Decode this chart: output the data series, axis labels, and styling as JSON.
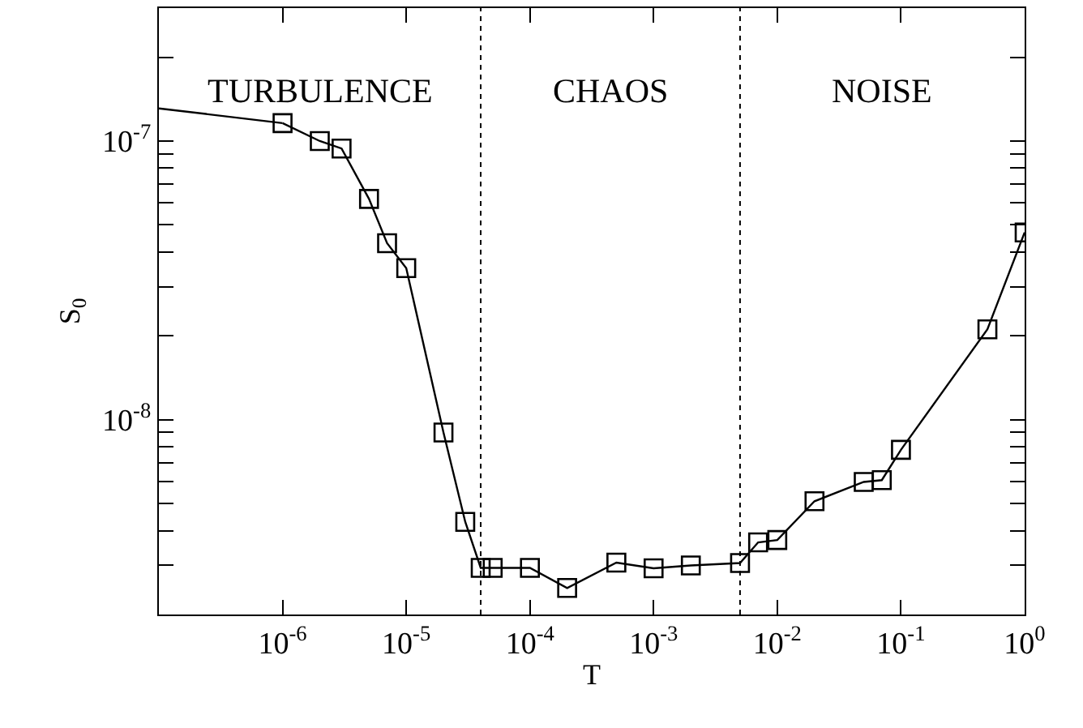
{
  "chart_data": {
    "type": "line",
    "xlabel": "T",
    "ylabel": "S$_{0}$",
    "log": "xy",
    "marker": "square",
    "line_style": "solid",
    "xlim": [
      1e-07,
      1
    ],
    "ylim": [
      2e-09,
      3e-07
    ],
    "xticks": [
      {
        "value": 1e-06,
        "label": "10$^{-6}$"
      },
      {
        "value": 1e-05,
        "label": "10$^{-5}$"
      },
      {
        "value": 0.0001,
        "label": "10$^{-4}$"
      },
      {
        "value": 0.001,
        "label": "10$^{-3}$"
      },
      {
        "value": 0.01,
        "label": "10$^{-2}$"
      },
      {
        "value": 0.1,
        "label": "10$^{-1}$"
      },
      {
        "value": 1,
        "label": "10$^{0}$"
      }
    ],
    "yticks": [
      {
        "value": 3e-09,
        "label": null
      },
      {
        "value": 4e-09,
        "label": null
      },
      {
        "value": 5e-09,
        "label": null
      },
      {
        "value": 6e-09,
        "label": null
      },
      {
        "value": 7e-09,
        "label": null
      },
      {
        "value": 8e-09,
        "label": null
      },
      {
        "value": 9e-09,
        "label": null
      },
      {
        "value": 1e-08,
        "label": "10$^{-8}$"
      },
      {
        "value": 2e-08,
        "label": null
      },
      {
        "value": 3e-08,
        "label": null
      },
      {
        "value": 4e-08,
        "label": null
      },
      {
        "value": 5e-08,
        "label": null
      },
      {
        "value": 6e-08,
        "label": null
      },
      {
        "value": 7e-08,
        "label": null
      },
      {
        "value": 8e-08,
        "label": null
      },
      {
        "value": 9e-08,
        "label": null
      },
      {
        "value": 1e-07,
        "label": "10$^{-7}$"
      },
      {
        "value": 2e-07,
        "label": null
      }
    ],
    "series": [
      {
        "color": "#000000",
        "x": [
          1e-06,
          2e-06,
          3e-06,
          5e-06,
          7e-06,
          1e-05,
          2e-05,
          3e-05,
          4e-05,
          5e-05,
          0.0001,
          0.0002,
          0.0005,
          0.001,
          0.002,
          0.005,
          0.007,
          0.01,
          0.02,
          0.05,
          0.07,
          0.1,
          0.5,
          1
        ],
        "values": [
          1.16e-07,
          1e-07,
          9.4e-08,
          6.2e-08,
          4.3e-08,
          3.5e-08,
          9e-09,
          4.3e-09,
          2.94e-09,
          2.94e-09,
          2.94e-09,
          2.49e-09,
          3.07e-09,
          2.93e-09,
          3e-09,
          3.06e-09,
          3.63e-09,
          3.7e-09,
          5.1e-09,
          5.98e-09,
          6.07e-09,
          7.8e-09,
          2.11e-08,
          4.7e-08
        ]
      },
      {
        "color": "#000000",
        "marker": "none",
        "x": [
          1e-07,
          1e-06
        ],
        "values": [
          1.31e-07,
          1.16e-07
        ]
      }
    ],
    "ref_lines": [
      {
        "axis": "x",
        "value": 4e-05,
        "line_style": "dotted",
        "color": "#000000"
      },
      {
        "axis": "x",
        "value": 0.005,
        "line_style": "dotted",
        "color": "#000000"
      }
    ],
    "annotations": [
      "TURBULENCE",
      "CHAOS",
      "NOISE"
    ]
  }
}
